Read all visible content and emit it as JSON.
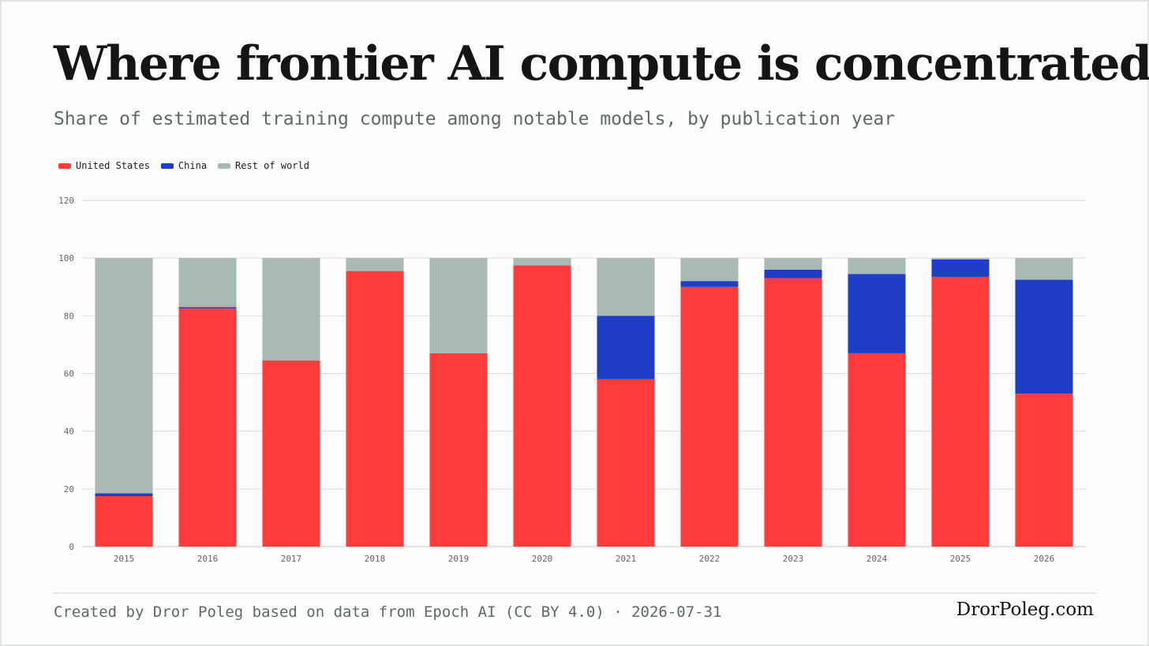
{
  "header": {
    "title": "Where frontier AI compute is concentrated",
    "subtitle": "Share of estimated training compute among notable models, by publication year"
  },
  "footer": {
    "credit": "Created by Dror Poleg based on data from Epoch AI (CC BY 4.0) · 2026-07-31",
    "brand": "DrorPoleg.com"
  },
  "colors": {
    "united_states": "#ff3c3c",
    "china": "#1f3ec6",
    "rest_of_world": "#a8b8b2",
    "grid": "#dcdcdc"
  },
  "chart_data": {
    "type": "bar",
    "stacked": true,
    "title": "Where frontier AI compute is concentrated",
    "subtitle": "Share of estimated training compute among notable models, by publication year",
    "xlabel": "",
    "ylabel": "",
    "ylim": [
      0,
      120
    ],
    "yticks": [
      0,
      20,
      40,
      60,
      80,
      100,
      120
    ],
    "grid": true,
    "legend_position": "top-left",
    "categories": [
      "2015",
      "2016",
      "2017",
      "2018",
      "2019",
      "2020",
      "2021",
      "2022",
      "2023",
      "2024",
      "2025",
      "2026"
    ],
    "series": [
      {
        "name": "United States",
        "color": "#ff3c3c",
        "values": [
          17.5,
          82.5,
          64.5,
          95.5,
          67,
          97.5,
          58,
          90,
          93,
          67,
          93.5,
          53
        ]
      },
      {
        "name": "China",
        "color": "#1f3ec6",
        "values": [
          1,
          0.5,
          0,
          0,
          0,
          0,
          22,
          2,
          3,
          27.5,
          6,
          39.5
        ]
      },
      {
        "name": "Rest of world",
        "color": "#a8b8b2",
        "values": [
          81.5,
          17,
          35.5,
          4.5,
          33,
          2.5,
          20,
          8,
          4,
          5.5,
          0.5,
          7.5
        ]
      }
    ]
  }
}
